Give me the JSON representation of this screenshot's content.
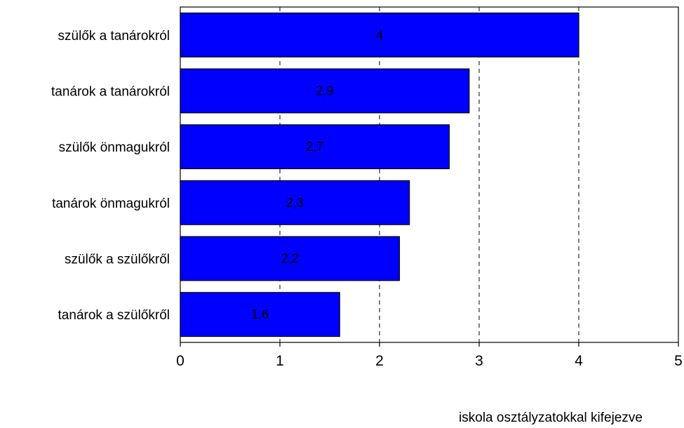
{
  "chart_data": {
    "type": "bar",
    "orientation": "horizontal",
    "categories": [
      "szülők a tanárokról",
      "tanárok a tanárokról",
      "szülők önmagukról",
      "tanárok önmagukról",
      "szülők a szülőkről",
      "tanárok a szülőkről"
    ],
    "values": [
      4,
      2.9,
      2.7,
      2.3,
      2.2,
      1.6
    ],
    "data_labels": [
      "4",
      "2,9",
      "2,7",
      "2,3",
      "2,2",
      "1,6"
    ],
    "xlim": [
      0,
      5
    ],
    "xticks": [
      0,
      1,
      2,
      3,
      4,
      5
    ],
    "xlabel": "iskola osztályzatokkal kifejezve",
    "ylabel": "",
    "title": "",
    "grid": "vertical dashed",
    "bar_color": "#0000ff"
  }
}
